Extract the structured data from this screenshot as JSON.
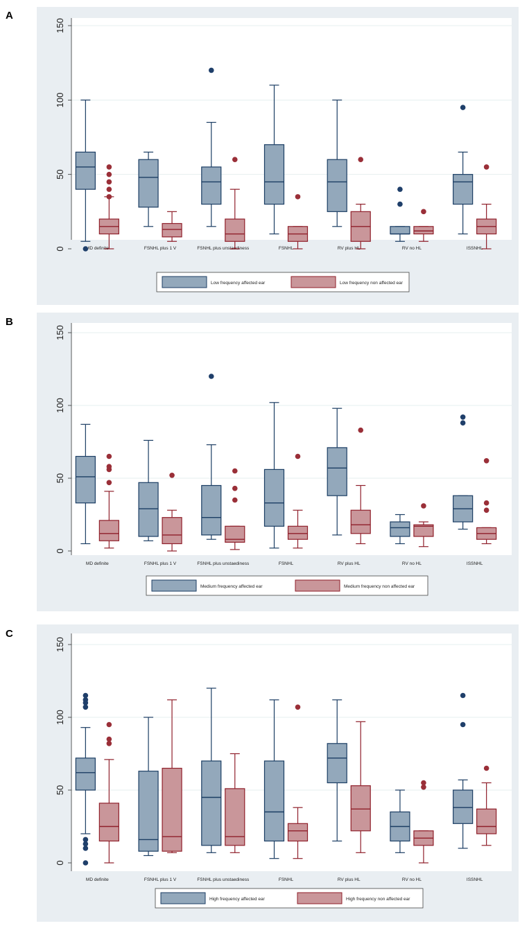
{
  "colors": {
    "panel_bg": "#e9eef2",
    "plot_bg": "#ffffff",
    "grid": "#e6efef",
    "affected_fill": "#93a8bb",
    "affected_stroke": "#1b3d63",
    "nonaffected_fill": "#c9969a",
    "nonaffected_stroke": "#8f1f2a",
    "outlier_affected": "#1f3f6a",
    "outlier_nonaffected": "#9a2f38"
  },
  "chart_data": [
    {
      "panel": "A",
      "type": "box",
      "ylim": [
        0,
        150
      ],
      "yticks": [
        0,
        50,
        100,
        150
      ],
      "categories": [
        "MD definite",
        "FSNHL plus 1 V",
        "FSNHL plus unstaediness",
        "FSNHL",
        "RV plus HL",
        "RV no HL",
        "ISSNHL"
      ],
      "series": [
        {
          "name": "Low frequency affected ear",
          "boxes": [
            {
              "min": 5,
              "q1": 40,
              "median": 55,
              "q3": 65,
              "max": 100,
              "outliers": [
                0
              ]
            },
            {
              "min": 15,
              "q1": 28,
              "median": 48,
              "q3": 60,
              "max": 65,
              "outliers": []
            },
            {
              "min": 15,
              "q1": 30,
              "median": 45,
              "q3": 55,
              "max": 85,
              "outliers": [
                120
              ]
            },
            {
              "min": 10,
              "q1": 30,
              "median": 45,
              "q3": 70,
              "max": 110,
              "outliers": []
            },
            {
              "min": 15,
              "q1": 25,
              "median": 45,
              "q3": 60,
              "max": 100,
              "outliers": []
            },
            {
              "min": 5,
              "q1": 10,
              "median": 10,
              "q3": 15,
              "max": 15,
              "outliers": [
                30,
                40
              ]
            },
            {
              "min": 10,
              "q1": 30,
              "median": 45,
              "q3": 50,
              "max": 65,
              "outliers": [
                95
              ]
            }
          ]
        },
        {
          "name": "Low frequency non affected ear",
          "boxes": [
            {
              "min": 0,
              "q1": 10,
              "median": 15,
              "q3": 20,
              "max": 35,
              "outliers": [
                35,
                40,
                45,
                50,
                55
              ]
            },
            {
              "min": 5,
              "q1": 8,
              "median": 13,
              "q3": 17,
              "max": 25,
              "outliers": []
            },
            {
              "min": 0,
              "q1": 5,
              "median": 10,
              "q3": 20,
              "max": 40,
              "outliers": [
                60
              ]
            },
            {
              "min": 0,
              "q1": 5,
              "median": 10,
              "q3": 15,
              "max": 15,
              "outliers": [
                35
              ]
            },
            {
              "min": 0,
              "q1": 5,
              "median": 15,
              "q3": 25,
              "max": 30,
              "outliers": [
                60
              ]
            },
            {
              "min": 5,
              "q1": 10,
              "median": 12,
              "q3": 15,
              "max": 15,
              "outliers": [
                25
              ]
            },
            {
              "min": 0,
              "q1": 10,
              "median": 15,
              "q3": 20,
              "max": 30,
              "outliers": [
                55
              ]
            }
          ]
        }
      ]
    },
    {
      "panel": "B",
      "type": "box",
      "ylim": [
        0,
        150
      ],
      "yticks": [
        0,
        50,
        100,
        150
      ],
      "categories": [
        "MD definite",
        "FSNHL plus 1 V",
        "FSNHL plus unstaediness",
        "FSNHL",
        "RV plus HL",
        "RV no HL",
        "ISSNHL"
      ],
      "series": [
        {
          "name": "Medium frequency affected ear",
          "boxes": [
            {
              "min": 5,
              "q1": 33,
              "median": 51,
              "q3": 65,
              "max": 87,
              "outliers": []
            },
            {
              "min": 7,
              "q1": 10,
              "median": 29,
              "q3": 47,
              "max": 76,
              "outliers": []
            },
            {
              "min": 8,
              "q1": 11,
              "median": 23,
              "q3": 45,
              "max": 73,
              "outliers": [
                120
              ]
            },
            {
              "min": 2,
              "q1": 17,
              "median": 33,
              "q3": 56,
              "max": 102,
              "outliers": []
            },
            {
              "min": 11,
              "q1": 38,
              "median": 57,
              "q3": 71,
              "max": 98,
              "outliers": []
            },
            {
              "min": 5,
              "q1": 10,
              "median": 16,
              "q3": 20,
              "max": 25,
              "outliers": []
            },
            {
              "min": 15,
              "q1": 20,
              "median": 29,
              "q3": 38,
              "max": 38,
              "outliers": [
                88,
                92
              ]
            }
          ]
        },
        {
          "name": "Medium frequency non affected ear",
          "boxes": [
            {
              "min": 2,
              "q1": 7,
              "median": 12,
              "q3": 21,
              "max": 41,
              "outliers": [
                47,
                56,
                58,
                65
              ]
            },
            {
              "min": 0,
              "q1": 5,
              "median": 11,
              "q3": 23,
              "max": 28,
              "outliers": [
                52
              ]
            },
            {
              "min": 1,
              "q1": 6,
              "median": 8,
              "q3": 17,
              "max": 17,
              "outliers": [
                35,
                43,
                55
              ]
            },
            {
              "min": 2,
              "q1": 8,
              "median": 12,
              "q3": 17,
              "max": 28,
              "outliers": [
                65
              ]
            },
            {
              "min": 5,
              "q1": 12,
              "median": 18,
              "q3": 28,
              "max": 45,
              "outliers": [
                83
              ]
            },
            {
              "min": 3,
              "q1": 10,
              "median": 17,
              "q3": 18,
              "max": 20,
              "outliers": [
                31
              ]
            },
            {
              "min": 5,
              "q1": 8,
              "median": 12,
              "q3": 16,
              "max": 16,
              "outliers": [
                28,
                33,
                62
              ]
            }
          ]
        }
      ]
    },
    {
      "panel": "C",
      "type": "box",
      "ylim": [
        0,
        150
      ],
      "yticks": [
        0,
        50,
        100,
        150
      ],
      "categories": [
        "MD definite",
        "FSNHL plus 1 V",
        "FSNHL plus unstaediness",
        "FSNHL",
        "RV plus HL",
        "RV no HL",
        "ISSNHL"
      ],
      "series": [
        {
          "name": "High frequency affected ear",
          "boxes": [
            {
              "min": 20,
              "q1": 50,
              "median": 62,
              "q3": 72,
              "max": 93,
              "outliers": [
                0,
                10,
                13,
                16,
                107,
                110,
                112,
                115
              ]
            },
            {
              "min": 5,
              "q1": 8,
              "median": 16,
              "q3": 63,
              "max": 100,
              "outliers": []
            },
            {
              "min": 7,
              "q1": 12,
              "median": 45,
              "q3": 70,
              "max": 120,
              "outliers": []
            },
            {
              "min": 3,
              "q1": 15,
              "median": 35,
              "q3": 70,
              "max": 112,
              "outliers": []
            },
            {
              "min": 15,
              "q1": 55,
              "median": 72,
              "q3": 82,
              "max": 112,
              "outliers": []
            },
            {
              "min": 7,
              "q1": 15,
              "median": 25,
              "q3": 35,
              "max": 50,
              "outliers": []
            },
            {
              "min": 10,
              "q1": 27,
              "median": 38,
              "q3": 50,
              "max": 57,
              "outliers": [
                95,
                115
              ]
            }
          ]
        },
        {
          "name": "High frequency non affected ear",
          "boxes": [
            {
              "min": 0,
              "q1": 15,
              "median": 25,
              "q3": 41,
              "max": 71,
              "outliers": [
                82,
                85,
                95
              ]
            },
            {
              "min": 7,
              "q1": 8,
              "median": 18,
              "q3": 65,
              "max": 112,
              "outliers": []
            },
            {
              "min": 7,
              "q1": 12,
              "median": 18,
              "q3": 51,
              "max": 75,
              "outliers": []
            },
            {
              "min": 3,
              "q1": 15,
              "median": 22,
              "q3": 27,
              "max": 38,
              "outliers": [
                107
              ]
            },
            {
              "min": 7,
              "q1": 22,
              "median": 37,
              "q3": 53,
              "max": 97,
              "outliers": []
            },
            {
              "min": 0,
              "q1": 12,
              "median": 17,
              "q3": 22,
              "max": 22,
              "outliers": [
                52,
                55
              ]
            },
            {
              "min": 12,
              "q1": 20,
              "median": 25,
              "q3": 37,
              "max": 55,
              "outliers": [
                65
              ]
            }
          ]
        }
      ]
    }
  ]
}
